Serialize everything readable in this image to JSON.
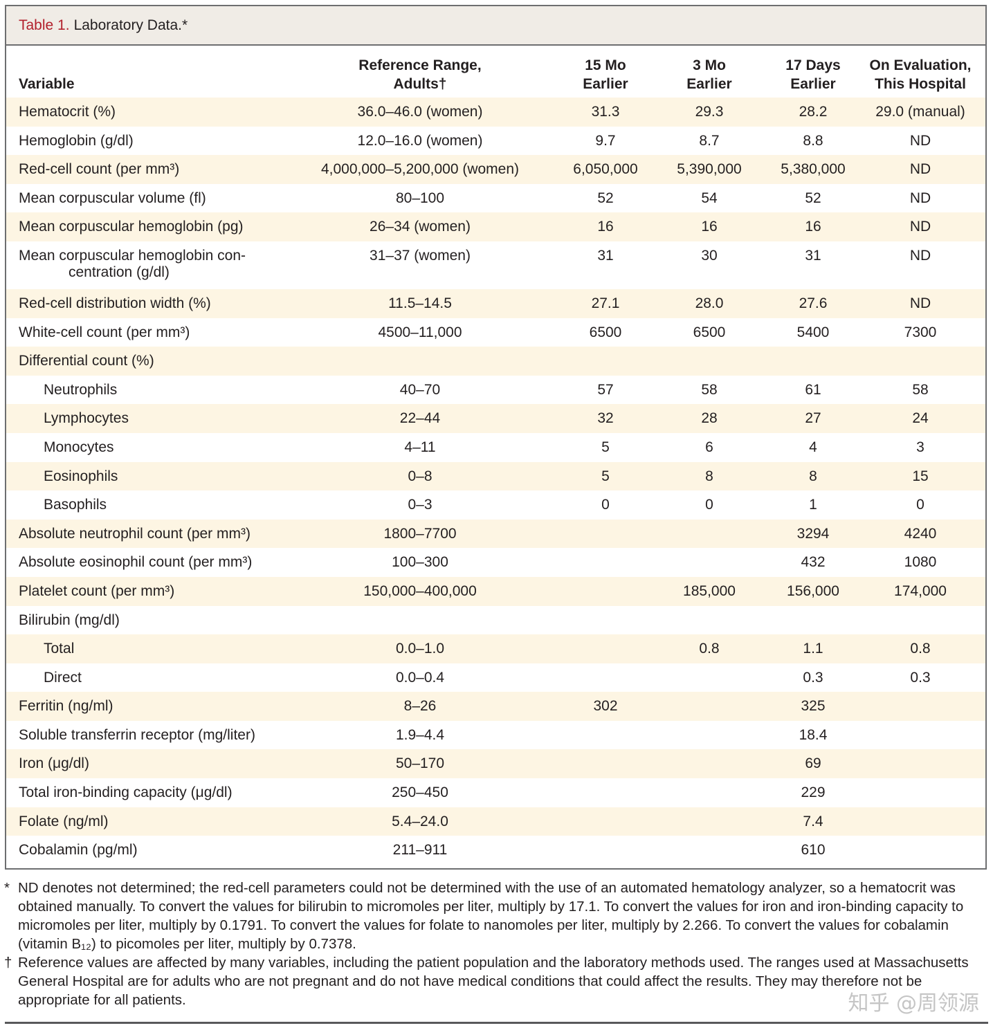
{
  "title": {
    "number": "Table 1.",
    "name": "Laboratory Data.*"
  },
  "columns": {
    "variable": "Variable",
    "reference": [
      "Reference Range,",
      "Adults†"
    ],
    "mo15": [
      "15 Mo",
      "Earlier"
    ],
    "mo3": [
      "3 Mo",
      "Earlier"
    ],
    "d17": [
      "17 Days",
      "Earlier"
    ],
    "eval": [
      "On Evaluation,",
      "This Hospital"
    ]
  },
  "rows": [
    {
      "variable": "Hematocrit (%)",
      "ref": "36.0–46.0 (women)",
      "mo15": "31.3",
      "mo3": "29.3",
      "d17": "28.2",
      "eval": "29.0 (manual)"
    },
    {
      "variable": "Hemoglobin (g/dl)",
      "ref": "12.0–16.0 (women)",
      "mo15": "9.7",
      "mo3": "8.7",
      "d17": "8.8",
      "eval": "ND"
    },
    {
      "variable": "Red-cell count (per mm³)",
      "ref": "4,000,000–5,200,000 (women)",
      "mo15": "6,050,000",
      "mo3": "5,390,000",
      "d17": "5,380,000",
      "eval": "ND"
    },
    {
      "variable": "Mean corpuscular volume (fl)",
      "ref": "80–100",
      "mo15": "52",
      "mo3": "54",
      "d17": "52",
      "eval": "ND"
    },
    {
      "variable": "Mean corpuscular hemoglobin (pg)",
      "ref": "26–34 (women)",
      "mo15": "16",
      "mo3": "16",
      "d17": "16",
      "eval": "ND"
    },
    {
      "variable": "Mean corpuscular hemoglobin con-",
      "variable2": "centration (g/dl)",
      "ref": "31–37 (women)",
      "mo15": "31",
      "mo3": "30",
      "d17": "31",
      "eval": "ND"
    },
    {
      "variable": "Red-cell distribution width (%)",
      "ref": "11.5–14.5",
      "mo15": "27.1",
      "mo3": "28.0",
      "d17": "27.6",
      "eval": "ND"
    },
    {
      "variable": "White-cell count (per mm³)",
      "ref": "4500–11,000",
      "mo15": "6500",
      "mo3": "6500",
      "d17": "5400",
      "eval": "7300"
    },
    {
      "variable": "Differential count (%)",
      "ref": "",
      "mo15": "",
      "mo3": "",
      "d17": "",
      "eval": ""
    },
    {
      "variable": "Neutrophils",
      "indent": true,
      "ref": "40–70",
      "mo15": "57",
      "mo3": "58",
      "d17": "61",
      "eval": "58"
    },
    {
      "variable": "Lymphocytes",
      "indent": true,
      "ref": "22–44",
      "mo15": "32",
      "mo3": "28",
      "d17": "27",
      "eval": "24"
    },
    {
      "variable": "Monocytes",
      "indent": true,
      "ref": "4–11",
      "mo15": "5",
      "mo3": "6",
      "d17": "4",
      "eval": "3"
    },
    {
      "variable": "Eosinophils",
      "indent": true,
      "ref": "0–8",
      "mo15": "5",
      "mo3": "8",
      "d17": "8",
      "eval": "15"
    },
    {
      "variable": "Basophils",
      "indent": true,
      "ref": "0–3",
      "mo15": "0",
      "mo3": "0",
      "d17": "1",
      "eval": "0"
    },
    {
      "variable": "Absolute neutrophil count (per mm³)",
      "ref": "1800–7700",
      "mo15": "",
      "mo3": "",
      "d17": "3294",
      "eval": "4240"
    },
    {
      "variable": "Absolute eosinophil count (per mm³)",
      "ref": "100–300",
      "mo15": "",
      "mo3": "",
      "d17": "432",
      "eval": "1080"
    },
    {
      "variable": "Platelet count (per mm³)",
      "ref": "150,000–400,000",
      "mo15": "",
      "mo3": "185,000",
      "d17": "156,000",
      "eval": "174,000"
    },
    {
      "variable": "Bilirubin (mg/dl)",
      "ref": "",
      "mo15": "",
      "mo3": "",
      "d17": "",
      "eval": ""
    },
    {
      "variable": "Total",
      "indent": true,
      "ref": "0.0–1.0",
      "mo15": "",
      "mo3": "0.8",
      "d17": "1.1",
      "eval": "0.8"
    },
    {
      "variable": "Direct",
      "indent": true,
      "ref": "0.0–0.4",
      "mo15": "",
      "mo3": "",
      "d17": "0.3",
      "eval": "0.3"
    },
    {
      "variable": "Ferritin (ng/ml)",
      "ref": "8–26",
      "mo15": "302",
      "mo3": "",
      "d17": "325",
      "eval": ""
    },
    {
      "variable": "Soluble transferrin receptor (mg/liter)",
      "ref": "1.9–4.4",
      "mo15": "",
      "mo3": "",
      "d17": "18.4",
      "eval": ""
    },
    {
      "variable": "Iron (μg/dl)",
      "ref": "50–170",
      "mo15": "",
      "mo3": "",
      "d17": "69",
      "eval": ""
    },
    {
      "variable": "Total iron-binding capacity (μg/dl)",
      "ref": "250–450",
      "mo15": "",
      "mo3": "",
      "d17": "229",
      "eval": ""
    },
    {
      "variable": "Folate (ng/ml)",
      "ref": "5.4–24.0",
      "mo15": "",
      "mo3": "",
      "d17": "7.4",
      "eval": ""
    },
    {
      "variable": "Cobalamin (pg/ml)",
      "ref": "211–911",
      "mo15": "",
      "mo3": "",
      "d17": "610",
      "eval": ""
    }
  ],
  "footnotes": [
    {
      "mark": "*",
      "text": "ND denotes not determined; the red-cell parameters could not be determined with the use of an automated hematology analyzer, so a hematocrit was obtained manually. To convert the values for bilirubin to micromoles per liter, multiply by 17.1. To convert the values for iron and iron-binding capacity to micromoles per liter, multiply by 0.1791. To convert the values for folate to nanomoles per liter, multiply by 2.266. To convert the values for cobalamin (vitamin B₁₂) to picomoles per liter, multiply by 0.7378."
    },
    {
      "mark": "†",
      "text": "Reference values are affected by many variables, including the patient population and the laboratory methods used. The ranges used at Massachusetts General Hospital are for adults who are not pregnant and do not have medical conditions that could affect the results. They may therefore not be appropriate for all patients."
    }
  ],
  "watermark": "知乎 @周领源",
  "colors": {
    "title_number": "#b2202c",
    "title_bar": "#f0ece6",
    "row_shade": "#fdf5e3",
    "border": "#6d6e70"
  }
}
